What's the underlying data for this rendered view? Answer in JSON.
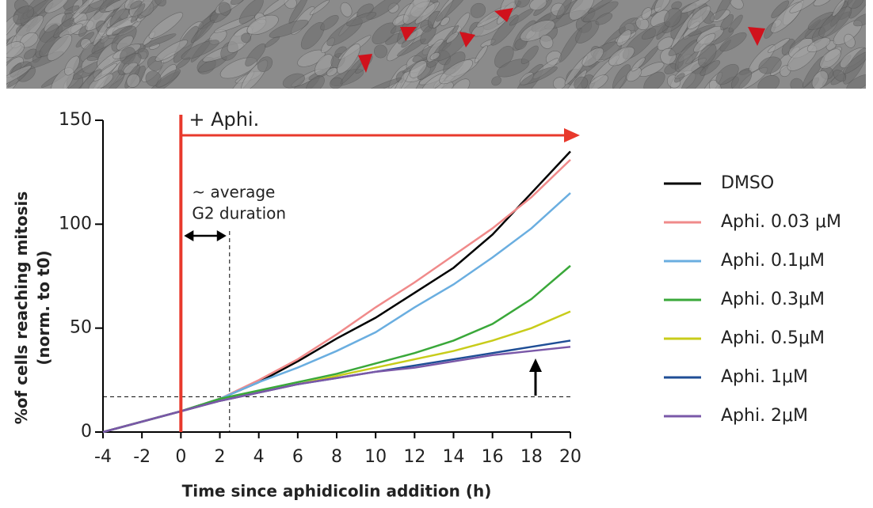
{
  "chart_data": {
    "type": "line",
    "x_label": "Time since aphidicolin addition (h)",
    "y_label": [
      "%of cells reaching mitosis",
      "(norm. to t0)"
    ],
    "treatment": {
      "label": "+ Aphi.",
      "x": 0,
      "color": "#e8392c"
    },
    "annotation": [
      "~ average",
      "G2 duration"
    ],
    "reference_lines": {
      "x": 2.5,
      "y": 17
    },
    "x": [
      -4,
      -2,
      0,
      2,
      4,
      6,
      8,
      10,
      12,
      14,
      16,
      18,
      20
    ],
    "xlim": [
      -4,
      20
    ],
    "xticks": [
      -4,
      -2,
      0,
      2,
      4,
      6,
      8,
      10,
      12,
      14,
      16,
      18,
      20
    ],
    "ylim": [
      0,
      150
    ],
    "yticks": [
      0,
      50,
      100,
      150
    ],
    "series": [
      {
        "name": "DMSO",
        "color": "#000000",
        "values": [
          0,
          5,
          10,
          16,
          24,
          34,
          45,
          55,
          67,
          79,
          95,
          115,
          135
        ]
      },
      {
        "name": "Aphi. 0.03 μM",
        "color": "#f08a8a",
        "values": [
          0,
          5,
          10,
          16,
          25,
          35,
          47,
          60,
          72,
          85,
          98,
          113,
          131
        ]
      },
      {
        "name": "Aphi. 0.1μM",
        "color": "#6aaee0",
        "values": [
          0,
          5,
          10,
          16,
          24,
          31,
          39,
          48,
          60,
          71,
          84,
          98,
          115
        ]
      },
      {
        "name": "Aphi. 0.3μM",
        "color": "#3aa83a",
        "values": [
          0,
          5,
          10,
          16,
          20,
          24,
          28,
          33,
          38,
          44,
          52,
          64,
          80
        ]
      },
      {
        "name": "Aphi. 0.5μM",
        "color": "#c8cc1a",
        "values": [
          0,
          5,
          10,
          15,
          19,
          23,
          27,
          31,
          35,
          39,
          44,
          50,
          58
        ]
      },
      {
        "name": "Aphi. 1μM",
        "color": "#1f4e96",
        "values": [
          0,
          5,
          10,
          15,
          19,
          23,
          26,
          29,
          32,
          35,
          38,
          41,
          44
        ]
      },
      {
        "name": "Aphi. 2μM",
        "color": "#7a58a8",
        "values": [
          0,
          5,
          10,
          15,
          19,
          23,
          26,
          29,
          31,
          34,
          37,
          39,
          41
        ]
      }
    ]
  }
}
